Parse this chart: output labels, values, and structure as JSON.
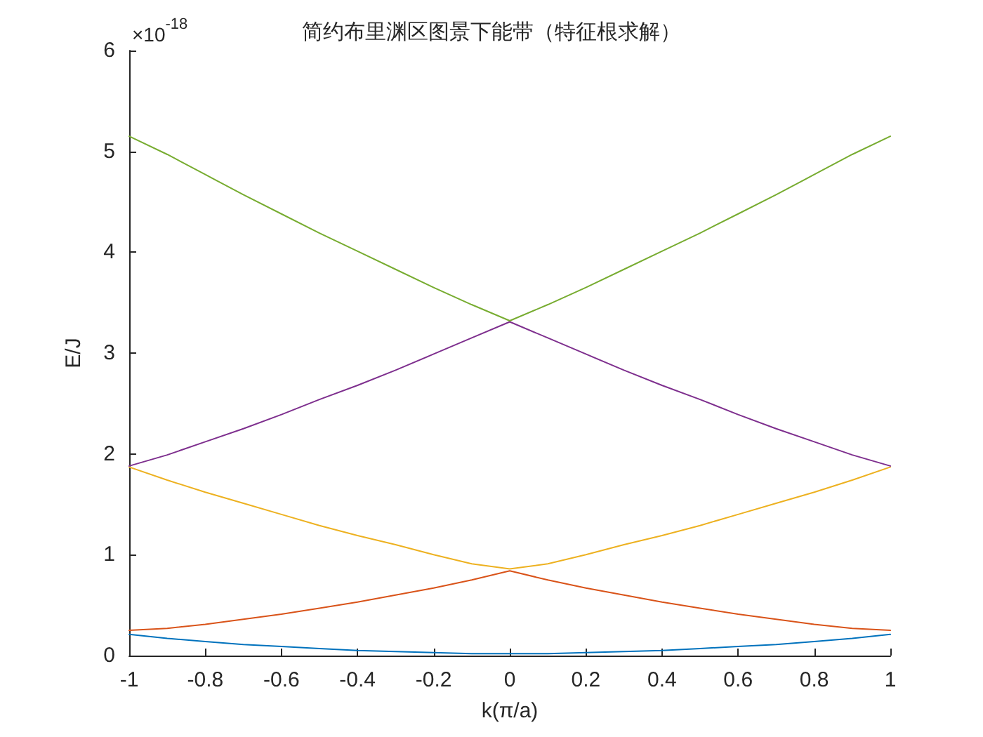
{
  "chart_data": {
    "type": "line",
    "title": "简约布里渊区图景下能带（特征根求解）",
    "xlabel": "k(π/a)",
    "ylabel": "E/J",
    "annotations": [
      "×10$^{-18}$"
    ],
    "x": [
      -1,
      -0.9,
      -0.8,
      -0.7,
      -0.6,
      -0.5,
      -0.4,
      -0.3,
      -0.2,
      -0.1,
      0,
      0.1,
      0.2,
      0.3,
      0.4,
      0.5,
      0.6,
      0.7,
      0.8,
      0.9,
      1
    ],
    "series": [
      {
        "color": "#0072bd",
        "values": [
          0.21,
          0.17,
          0.14,
          0.11,
          0.09,
          0.07,
          0.05,
          0.04,
          0.03,
          0.02,
          0.02,
          0.02,
          0.03,
          0.04,
          0.05,
          0.07,
          0.09,
          0.11,
          0.14,
          0.17,
          0.21
        ]
      },
      {
        "color": "#d95319",
        "values": [
          0.25,
          0.27,
          0.31,
          0.36,
          0.41,
          0.47,
          0.53,
          0.6,
          0.67,
          0.75,
          0.84,
          0.75,
          0.67,
          0.6,
          0.53,
          0.47,
          0.41,
          0.36,
          0.31,
          0.27,
          0.25
        ]
      },
      {
        "color": "#edb120",
        "values": [
          1.87,
          1.74,
          1.62,
          1.51,
          1.4,
          1.29,
          1.19,
          1.1,
          1,
          0.91,
          0.86,
          0.91,
          1,
          1.1,
          1.19,
          1.29,
          1.4,
          1.51,
          1.62,
          1.74,
          1.87
        ]
      },
      {
        "color": "#7e2f8e",
        "values": [
          1.88,
          1.99,
          2.12,
          2.25,
          2.39,
          2.54,
          2.68,
          2.83,
          2.99,
          3.15,
          3.31,
          3.15,
          2.99,
          2.83,
          2.68,
          2.54,
          2.39,
          2.25,
          2.12,
          1.99,
          1.88
        ]
      },
      {
        "color": "#77ac30",
        "values": [
          5.15,
          4.97,
          4.77,
          4.57,
          4.38,
          4.19,
          4.01,
          3.83,
          3.65,
          3.48,
          3.32,
          3.48,
          3.65,
          3.83,
          4.01,
          4.19,
          4.38,
          4.57,
          4.77,
          4.97,
          5.15
        ]
      }
    ],
    "xlim": [
      -1,
      1
    ],
    "xticks": [
      -1,
      -0.8,
      -0.6,
      -0.4,
      -0.2,
      0,
      0.2,
      0.4,
      0.6,
      0.8,
      1
    ],
    "ylim": [
      0,
      6
    ],
    "yticks": [
      0,
      1,
      2,
      3,
      4,
      5,
      6
    ],
    "marker": "none",
    "line_style": "solid"
  }
}
